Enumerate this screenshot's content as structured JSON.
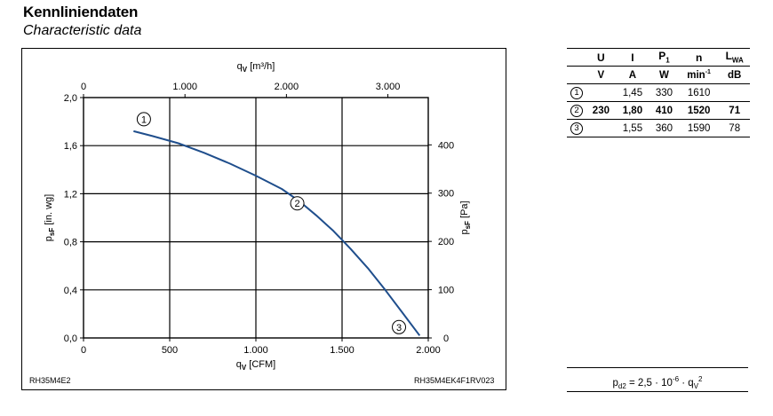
{
  "header": {
    "title": "Kennliniendaten",
    "subtitle": "Characteristic data"
  },
  "chart_data": {
    "type": "line",
    "axes": {
      "x_bottom": {
        "label_main": "q",
        "label_sub": "V",
        "label_unit": " [CFM]",
        "range": [
          0,
          2000
        ],
        "ticks": [
          0,
          500,
          1000,
          1500,
          2000
        ],
        "tick_labels": [
          "0",
          "500",
          "1.000",
          "1.500",
          "2.000"
        ]
      },
      "x_top": {
        "label_main": "q",
        "label_sub": "V",
        "label_unit": " [m³/h]",
        "range": [
          0,
          3398
        ],
        "ticks": [
          0,
          1000,
          2000,
          3000
        ],
        "tick_labels": [
          "0",
          "1.000",
          "2.000",
          "3.000"
        ]
      },
      "y_left": {
        "label_main": "p",
        "label_sub": "sF",
        "label_unit": " [in. wg]",
        "range": [
          0,
          2.0
        ],
        "ticks": [
          0,
          0.4,
          0.8,
          1.2,
          1.6,
          2.0
        ],
        "tick_labels": [
          "0,0",
          "0,4",
          "0,8",
          "1,2",
          "1,6",
          "2,0"
        ]
      },
      "y_right": {
        "label_main": "p",
        "label_sub": "sF",
        "label_unit": " [Pa]",
        "range": [
          0,
          498
        ],
        "ticks": [
          0,
          100,
          200,
          300,
          400
        ],
        "tick_labels": [
          "0",
          "100",
          "200",
          "300",
          "400"
        ]
      }
    },
    "grid": true,
    "series": [
      {
        "color": "#1f4e8c",
        "x": [
          290,
          400,
          550,
          700,
          850,
          1000,
          1150,
          1250,
          1350,
          1450,
          1550,
          1650,
          1750,
          1850,
          1950
        ],
        "y": [
          1.72,
          1.68,
          1.62,
          1.54,
          1.45,
          1.35,
          1.24,
          1.14,
          1.02,
          0.89,
          0.74,
          0.58,
          0.4,
          0.21,
          0.02
        ]
      }
    ],
    "markers": [
      {
        "label": "1",
        "x": 350,
        "y": 1.82
      },
      {
        "label": "2",
        "x": 1240,
        "y": 1.12
      },
      {
        "label": "3",
        "x": 1830,
        "y": 0.09
      }
    ]
  },
  "table": {
    "header1": [
      "",
      "U",
      "I",
      "P",
      "n",
      "L"
    ],
    "header1_subs": [
      "",
      "",
      "",
      "1",
      "",
      "WA"
    ],
    "header2": [
      "",
      "V",
      "A",
      "W",
      "min",
      "dB"
    ],
    "header2_sups": [
      "",
      "",
      "",
      "",
      "-1",
      ""
    ],
    "rows": [
      {
        "id": "1",
        "cells": [
          "",
          "1,45",
          "330",
          "1610",
          ""
        ]
      },
      {
        "id": "2",
        "cells": [
          "230",
          "1,80",
          "410",
          "1520",
          "71"
        ]
      },
      {
        "id": "3",
        "cells": [
          "",
          "1,55",
          "360",
          "1590",
          "78"
        ]
      }
    ]
  },
  "formula": {
    "p_main": "p",
    "p_sub": "d2",
    "mid": " = 2,5 · 10",
    "exp": "-6",
    "dot": " · q",
    "q_sub": "V",
    "q_exp": "2"
  },
  "codes": {
    "left": "RH35M4E2",
    "right": "RH35M4EK4F1RV023"
  }
}
